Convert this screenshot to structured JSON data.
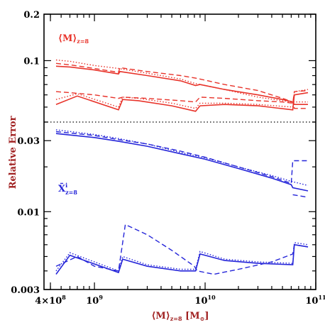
{
  "chart_data": {
    "type": "line",
    "ylabel": "Relative Error",
    "x_axis": {
      "label_parts": [
        "⟨M⟩",
        "z=8",
        " [M",
        "⊙",
        "]"
      ],
      "scale": "log",
      "range": [
        350000000.0,
        100000000000.0
      ],
      "major_ticks": [
        {
          "value": 400000000.0,
          "label_base": "4×10",
          "label_exp": "8"
        },
        {
          "value": 1000000000.0,
          "label_base": "10",
          "label_exp": "9"
        },
        {
          "value": 10000000000.0,
          "label_base": "10",
          "label_exp": "10"
        },
        {
          "value": 100000000000.0,
          "label_base": "10",
          "label_exp": "11"
        }
      ]
    },
    "panels": [
      {
        "name": "top",
        "annotation": {
          "base": "⟨M⟩",
          "sub": "z=8"
        },
        "color": "#e8332a",
        "y_axis": {
          "scale": "log",
          "range": [
            0.04,
            0.2
          ],
          "tick_labels": [
            {
              "value": 0.2,
              "label": "0.2"
            },
            {
              "value": 0.1,
              "label": "0.1"
            }
          ]
        },
        "series": [
          {
            "style": "dotted",
            "points": [
              [
                450000000.0,
                0.101
              ],
              [
                600000000.0,
                0.099
              ],
              [
                1000000000.0,
                0.093
              ],
              [
                1650000000.0,
                0.089
              ],
              [
                1800000000.0,
                0.088
              ],
              [
                2200000000.0,
                0.086
              ],
              [
                4000000000.0,
                0.08
              ],
              [
                6000000000.0,
                0.076
              ],
              [
                8200000000.0,
                0.071
              ],
              [
                9000000000.0,
                0.07
              ],
              [
                15000000000.0,
                0.065
              ],
              [
                30000000000.0,
                0.058
              ],
              [
                50000000000.0,
                0.055
              ],
              [
                60000000000.0,
                0.054
              ],
              [
                85000000000.0,
                0.054
              ]
            ]
          },
          {
            "style": "dashed",
            "points": [
              [
                450000000.0,
                0.096
              ],
              [
                600000000.0,
                0.094
              ],
              [
                1000000000.0,
                0.089
              ],
              [
                1650000000.0,
                0.084
              ],
              [
                1700000000.0,
                0.09
              ],
              [
                3000000000.0,
                0.085
              ],
              [
                6000000000.0,
                0.08
              ],
              [
                8200000000.0,
                0.077
              ],
              [
                9000000000.0,
                0.076
              ],
              [
                15000000000.0,
                0.07
              ],
              [
                30000000000.0,
                0.064
              ],
              [
                50000000000.0,
                0.057
              ],
              [
                62000000000.0,
                0.054
              ],
              [
                64000000000.0,
                0.049
              ],
              [
                85000000000.0,
                0.049
              ]
            ]
          },
          {
            "style": "solid",
            "points": [
              [
                450000000.0,
                0.092
              ],
              [
                600000000.0,
                0.091
              ],
              [
                1000000000.0,
                0.087
              ],
              [
                1650000000.0,
                0.082
              ],
              [
                1700000000.0,
                0.085
              ],
              [
                3000000000.0,
                0.08
              ],
              [
                6000000000.0,
                0.074
              ],
              [
                8200000000.0,
                0.069
              ],
              [
                9000000000.0,
                0.07
              ],
              [
                15000000000.0,
                0.065
              ],
              [
                30000000000.0,
                0.06
              ],
              [
                50000000000.0,
                0.056
              ],
              [
                62000000000.0,
                0.054
              ],
              [
                64000000000.0,
                0.052
              ],
              [
                85000000000.0,
                0.052
              ]
            ]
          },
          {
            "style": "dashed",
            "points": [
              [
                450000000.0,
                0.063
              ],
              [
                600000000.0,
                0.062
              ],
              [
                1000000000.0,
                0.06
              ],
              [
                1650000000.0,
                0.057
              ],
              [
                1800000000.0,
                0.058
              ],
              [
                3000000000.0,
                0.057
              ],
              [
                6000000000.0,
                0.055
              ],
              [
                8200000000.0,
                0.054
              ],
              [
                9000000000.0,
                0.058
              ],
              [
                15000000000.0,
                0.057
              ],
              [
                30000000000.0,
                0.055
              ],
              [
                50000000000.0,
                0.054
              ],
              [
                62000000000.0,
                0.053
              ],
              [
                64000000000.0,
                0.063
              ],
              [
                85000000000.0,
                0.064
              ]
            ]
          },
          {
            "style": "dotted",
            "points": [
              [
                450000000.0,
                0.056
              ],
              [
                700000000.0,
                0.061
              ],
              [
                1650000000.0,
                0.05
              ],
              [
                1800000000.0,
                0.058
              ],
              [
                2500000000.0,
                0.057
              ],
              [
                5000000000.0,
                0.053
              ],
              [
                8200000000.0,
                0.049
              ],
              [
                9000000000.0,
                0.053
              ],
              [
                15000000000.0,
                0.053
              ],
              [
                30000000000.0,
                0.052
              ],
              [
                62000000000.0,
                0.05
              ],
              [
                64000000000.0,
                0.063
              ],
              [
                85000000000.0,
                0.065
              ]
            ]
          },
          {
            "style": "solid",
            "points": [
              [
                450000000.0,
                0.052
              ],
              [
                700000000.0,
                0.059
              ],
              [
                1650000000.0,
                0.048
              ],
              [
                1800000000.0,
                0.056
              ],
              [
                2500000000.0,
                0.055
              ],
              [
                5000000000.0,
                0.051
              ],
              [
                8200000000.0,
                0.047
              ],
              [
                9000000000.0,
                0.051
              ],
              [
                15000000000.0,
                0.052
              ],
              [
                30000000000.0,
                0.051
              ],
              [
                62000000000.0,
                0.048
              ],
              [
                64000000000.0,
                0.06
              ],
              [
                85000000000.0,
                0.062
              ]
            ]
          }
        ]
      },
      {
        "name": "bottom",
        "annotation": {
          "base": "X̄",
          "sup": "i",
          "sub": "z=8"
        },
        "color": "#2525d9",
        "y_axis": {
          "scale": "log",
          "range": [
            0.003,
            0.04
          ],
          "tick_labels": [
            {
              "value": 0.03,
              "label": "0.03"
            },
            {
              "value": 0.01,
              "label": "0.01"
            },
            {
              "value": 0.003,
              "label": "0.003"
            }
          ]
        },
        "series": [
          {
            "style": "dotted",
            "points": [
              [
                450000000.0,
                0.0355
              ],
              [
                1000000000.0,
                0.033
              ],
              [
                1650000000.0,
                0.031
              ],
              [
                3000000000.0,
                0.0285
              ],
              [
                6000000000.0,
                0.025
              ],
              [
                10000000000.0,
                0.023
              ],
              [
                20000000000.0,
                0.02
              ],
              [
                40000000000.0,
                0.0175
              ],
              [
                60000000000.0,
                0.016
              ],
              [
                85000000000.0,
                0.015
              ]
            ]
          },
          {
            "style": "dashed",
            "points": [
              [
                450000000.0,
                0.0345
              ],
              [
                1000000000.0,
                0.0325
              ],
              [
                1650000000.0,
                0.0305
              ],
              [
                3000000000.0,
                0.0285
              ],
              [
                6000000000.0,
                0.0255
              ],
              [
                10000000000.0,
                0.0232
              ],
              [
                20000000000.0,
                0.02
              ],
              [
                40000000000.0,
                0.0172
              ],
              [
                60000000000.0,
                0.0155
              ],
              [
                62000000000.0,
                0.022
              ],
              [
                85000000000.0,
                0.022
              ]
            ]
          },
          {
            "style": "dashed",
            "points": [
              [
                62000000000.0,
                0.013
              ],
              [
                85000000000.0,
                0.0125
              ]
            ]
          },
          {
            "style": "solid",
            "points": [
              [
                450000000.0,
                0.0335
              ],
              [
                1000000000.0,
                0.0315
              ],
              [
                1650000000.0,
                0.0297
              ],
              [
                3000000000.0,
                0.0275
              ],
              [
                6000000000.0,
                0.0245
              ],
              [
                10000000000.0,
                0.0225
              ],
              [
                20000000000.0,
                0.0195
              ],
              [
                40000000000.0,
                0.0168
              ],
              [
                60000000000.0,
                0.0152
              ],
              [
                62000000000.0,
                0.0145
              ],
              [
                85000000000.0,
                0.0138
              ]
            ]
          },
          {
            "style": "dashed",
            "points": [
              [
                450000000.0,
                0.0043
              ],
              [
                700000000.0,
                0.005
              ],
              [
                1000000000.0,
                0.0043
              ],
              [
                1650000000.0,
                0.004
              ],
              [
                1900000000.0,
                0.0082
              ],
              [
                3000000000.0,
                0.007
              ],
              [
                5000000000.0,
                0.0055
              ],
              [
                8000000000.0,
                0.0043
              ],
              [
                8500000000.0,
                0.004
              ],
              [
                12000000000.0,
                0.0038
              ],
              [
                20000000000.0,
                0.0041
              ],
              [
                40000000000.0,
                0.0046
              ],
              [
                62000000000.0,
                0.0052
              ],
              [
                64000000000.0,
                0.006
              ],
              [
                85000000000.0,
                0.0058
              ]
            ]
          },
          {
            "style": "dotted",
            "points": [
              [
                450000000.0,
                0.004
              ],
              [
                600000000.0,
                0.0053
              ],
              [
                1650000000.0,
                0.004
              ],
              [
                1800000000.0,
                0.005
              ],
              [
                3000000000.0,
                0.0044
              ],
              [
                6000000000.0,
                0.0041
              ],
              [
                8200000000.0,
                0.0041
              ],
              [
                9000000000.0,
                0.0054
              ],
              [
                15000000000.0,
                0.0048
              ],
              [
                30000000000.0,
                0.0046
              ],
              [
                62000000000.0,
                0.0045
              ],
              [
                64000000000.0,
                0.0062
              ],
              [
                85000000000.0,
                0.006
              ]
            ]
          },
          {
            "style": "solid",
            "points": [
              [
                450000000.0,
                0.0038
              ],
              [
                600000000.0,
                0.0051
              ],
              [
                1650000000.0,
                0.0039
              ],
              [
                1800000000.0,
                0.0048
              ],
              [
                3000000000.0,
                0.0043
              ],
              [
                6000000000.0,
                0.004
              ],
              [
                8200000000.0,
                0.004
              ],
              [
                9000000000.0,
                0.0052
              ],
              [
                15000000000.0,
                0.0047
              ],
              [
                30000000000.0,
                0.0045
              ],
              [
                62000000000.0,
                0.0044
              ],
              [
                64000000000.0,
                0.006
              ],
              [
                85000000000.0,
                0.0058
              ]
            ]
          }
        ]
      }
    ]
  }
}
